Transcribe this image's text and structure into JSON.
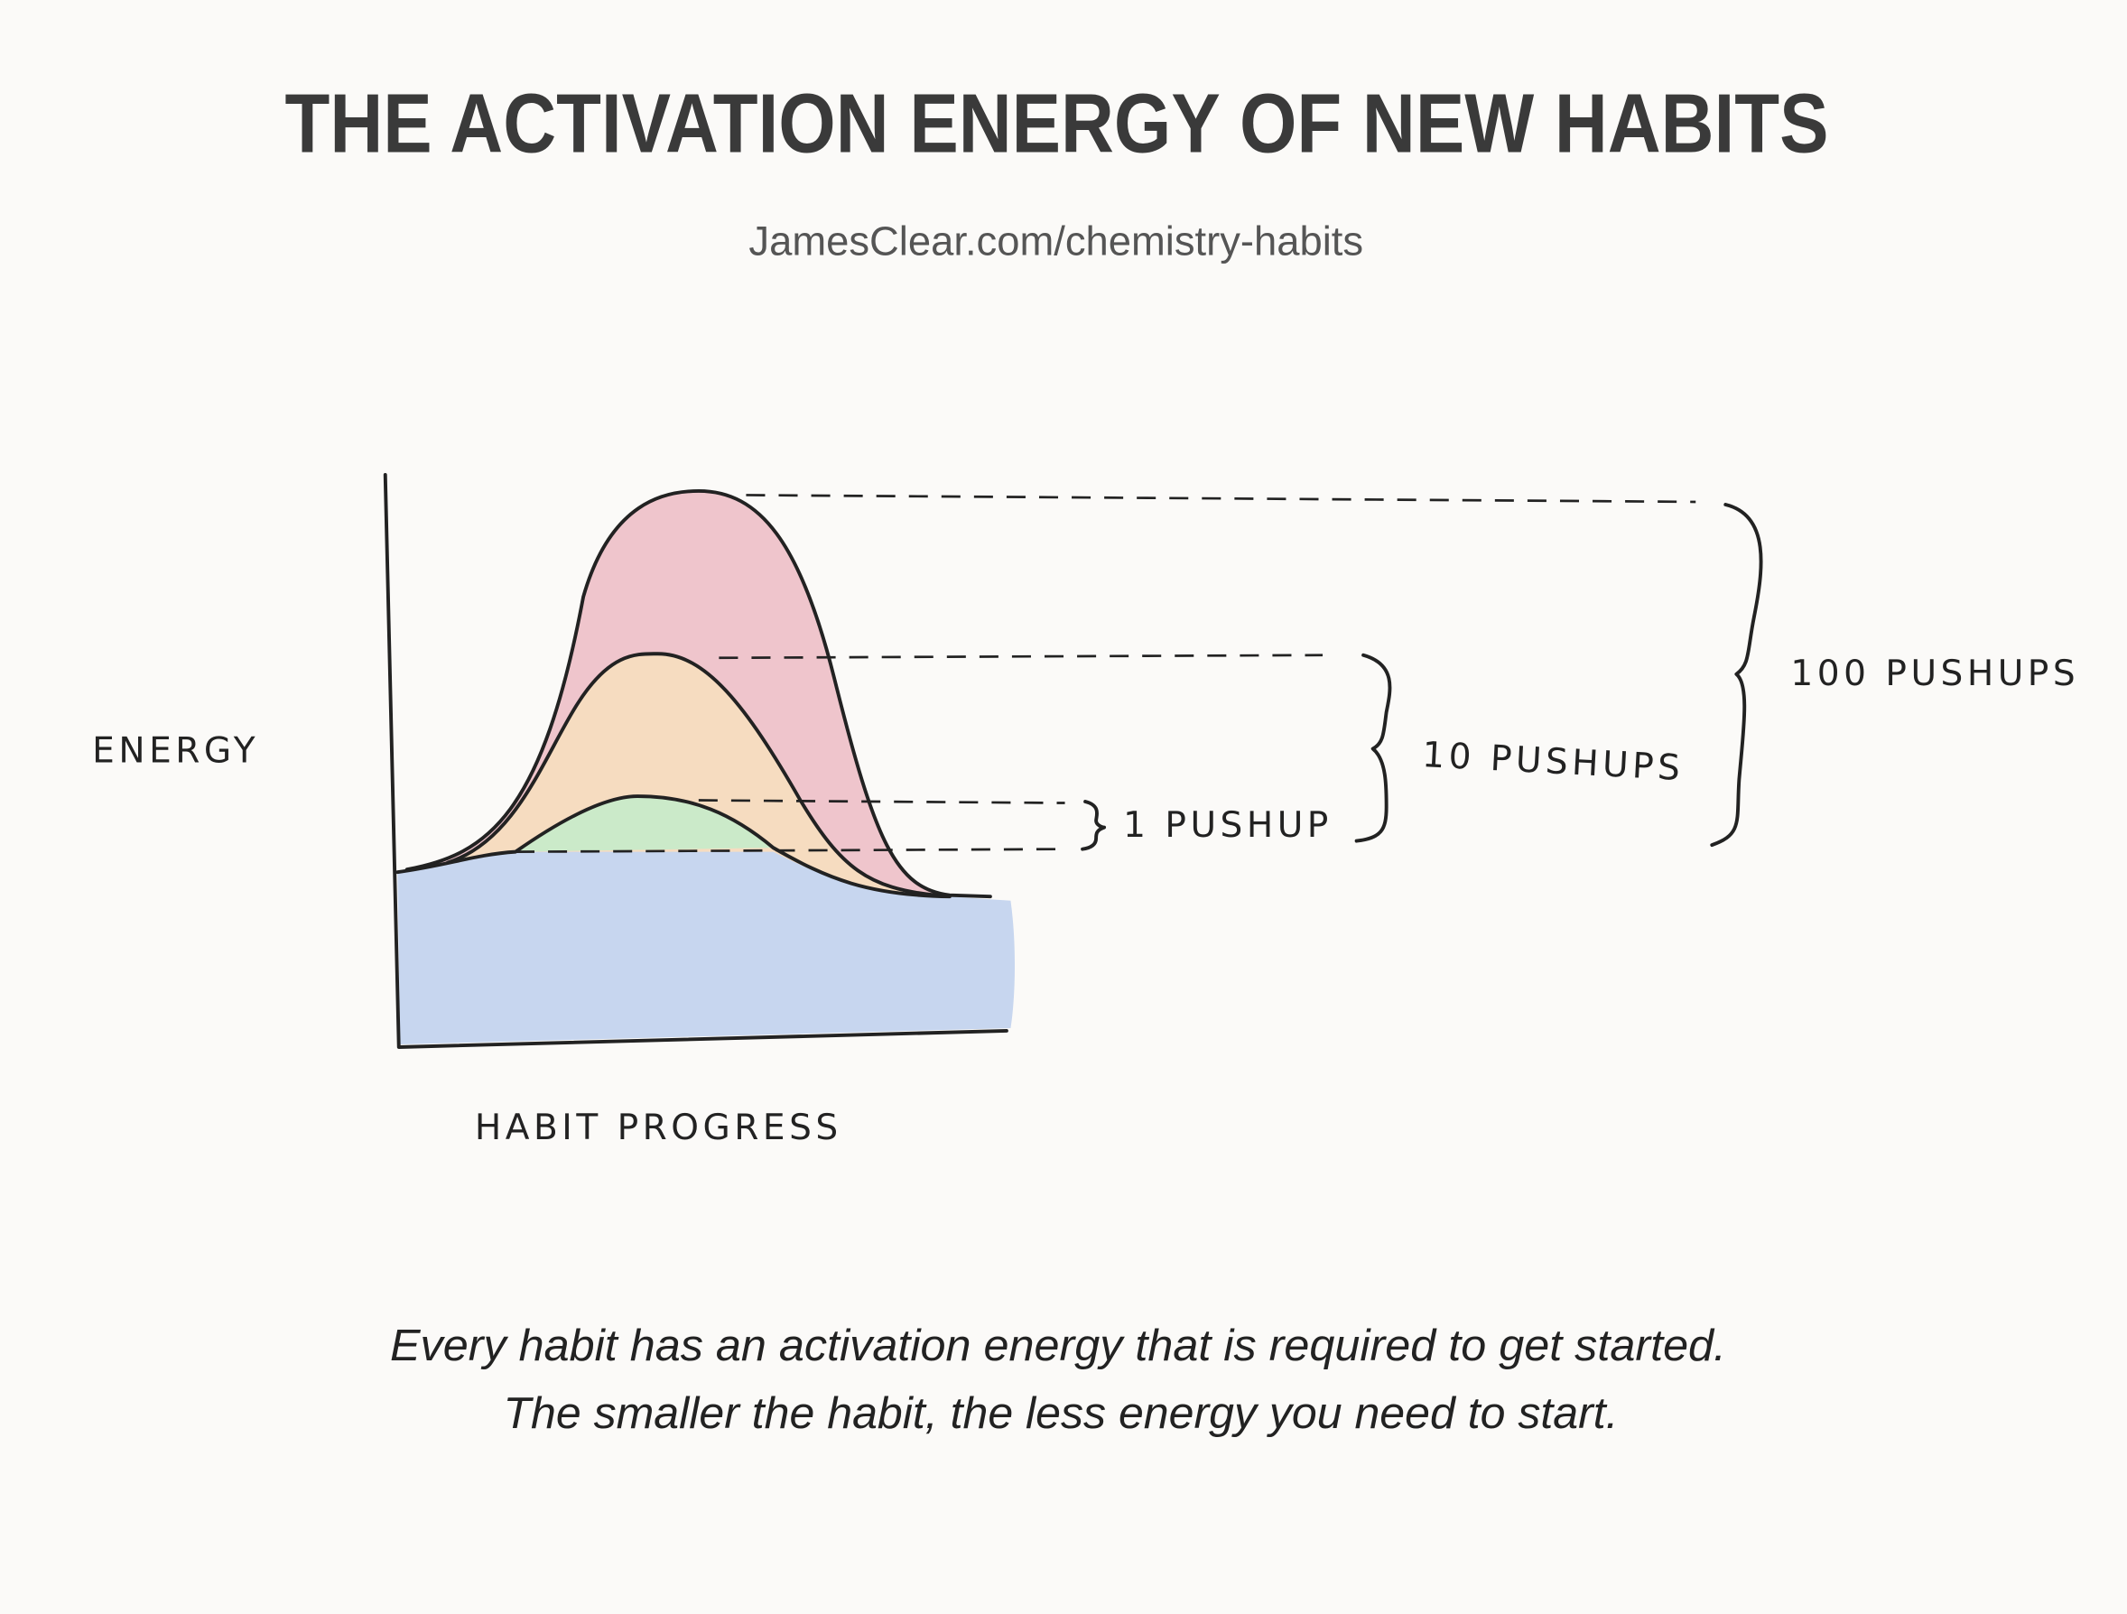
{
  "header": {
    "title": "THE ACTIVATION ENERGY OF NEW HABITS",
    "subtitle": "JamesClear.com/chemistry-habits"
  },
  "diagram": {
    "y_axis_label": "ENERGY",
    "x_axis_label": "HABIT PROGRESS",
    "levels": [
      {
        "label": "1 PUSHUP"
      },
      {
        "label": "10 PUSHUPS"
      },
      {
        "label": "100 PUSHUPS"
      }
    ]
  },
  "caption": [
    "Every habit has an activation energy that is required to get started.",
    "The smaller the habit, the less energy you need to start."
  ]
}
